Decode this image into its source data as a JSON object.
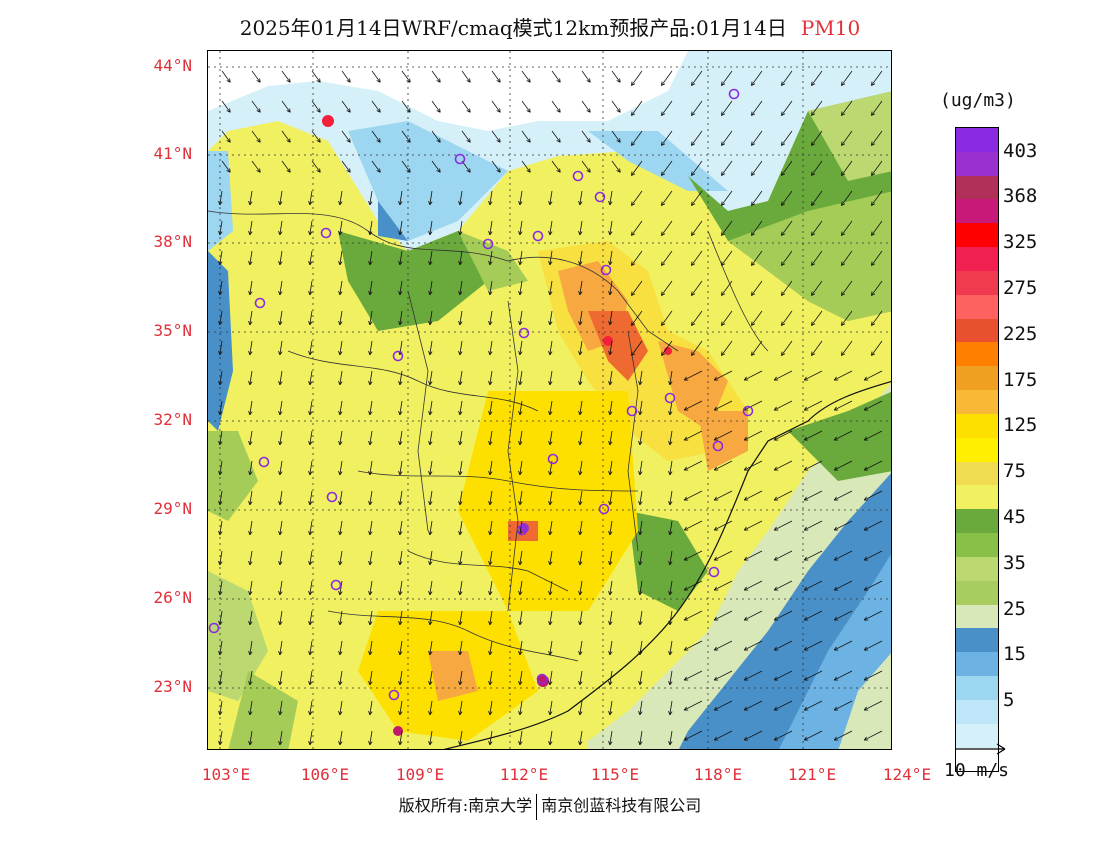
{
  "title": {
    "main": "2025年01月14日WRF/cmaq模式12km预报产品:01月14日",
    "pollutant": "PM10"
  },
  "map": {
    "lat_labels": [
      "44°N",
      "41°N",
      "38°N",
      "35°N",
      "32°N",
      "29°N",
      "26°N",
      "23°N"
    ],
    "lon_labels": [
      "103°E",
      "106°E",
      "109°E",
      "112°E",
      "115°E",
      "118°E",
      "121°E",
      "124°E"
    ],
    "colors": {
      "white": "#ffffff",
      "v5": "#d6f0fa",
      "v15": "#9cd6f0",
      "v20": "#6cb2e2",
      "v25": "#4a90c8",
      "v30": "#d8e8b8",
      "v35": "#bcd870",
      "v40": "#a6cc58",
      "v45": "#6aaa3c",
      "v75": "#f0f060",
      "v100": "#f8e040",
      "v125": "#fee000",
      "v175": "#f8a840",
      "v225": "#ee6a30",
      "v325": "#f2203a",
      "v368": "#c0186a",
      "v403": "#9830c8"
    },
    "station_marker_color": "#8a2be2"
  },
  "legend": {
    "units": "(ug/m3)",
    "colors": [
      "#8a2be2",
      "#9b30d0",
      "#b0305a",
      "#c81878",
      "#ff0000",
      "#f22050",
      "#f03a50",
      "#ff6060",
      "#e85030",
      "#ff8000",
      "#f0a020",
      "#f8b838",
      "#fee000",
      "#fff000",
      "#f0dc50",
      "#f0f060",
      "#6aaa3c",
      "#88c048",
      "#bcd870",
      "#a8cc60",
      "#d8e8b8",
      "#4a90c8",
      "#6cb2e2",
      "#9cd6f0",
      "#bfe6f8",
      "#d6f0fa",
      "#ffffff"
    ],
    "ticks": [
      "403",
      "368",
      "325",
      "275",
      "225",
      "175",
      "125",
      "75",
      "45",
      "35",
      "25",
      "15",
      "5"
    ]
  },
  "wind_reference": {
    "label": "10 m/s"
  },
  "copyright": {
    "left": "版权所有:南京大学",
    "right": "南京创蓝科技有限公司"
  }
}
